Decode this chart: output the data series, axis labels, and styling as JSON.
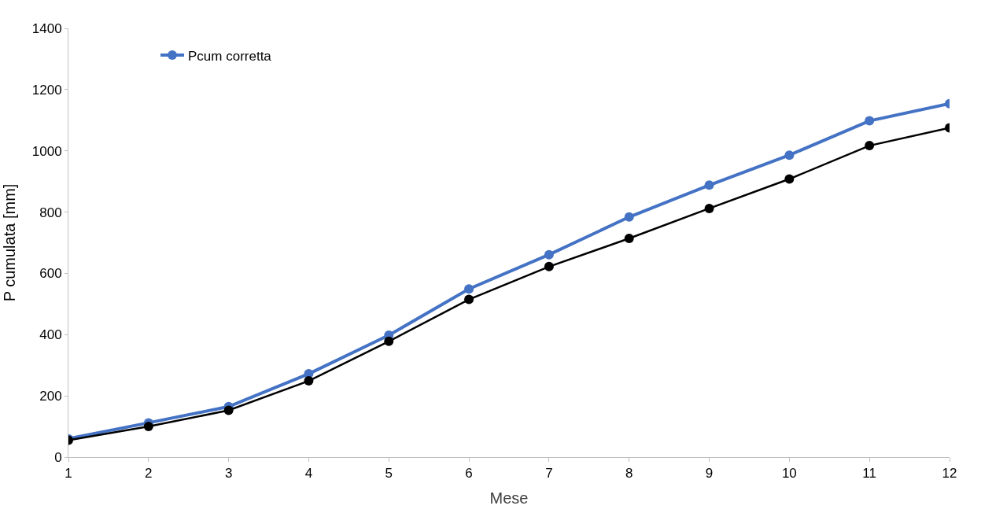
{
  "chart_data": {
    "type": "line",
    "xlabel": "Mese",
    "ylabel": "P cumulata [mm]",
    "x": [
      1,
      2,
      3,
      4,
      5,
      6,
      7,
      8,
      9,
      10,
      11,
      12
    ],
    "series": [
      {
        "name": "Pcum corretta",
        "color": "#4472c4",
        "values": [
          60,
          112,
          165,
          272,
          398,
          549,
          661,
          784,
          888,
          986,
          1098,
          1154
        ]
      },
      {
        "color": "#000000",
        "values": [
          55,
          100,
          153,
          249,
          378,
          515,
          622,
          714,
          812,
          908,
          1017,
          1075
        ]
      }
    ],
    "xlim": [
      1,
      12
    ],
    "xticks": [
      1,
      2,
      3,
      4,
      5,
      6,
      7,
      8,
      9,
      10,
      11,
      12
    ],
    "ylim": [
      0,
      1400
    ],
    "yticks": [
      0,
      200,
      400,
      600,
      800,
      1000,
      1200,
      1400
    ],
    "legend": "top left",
    "marker": "circle",
    "line_style": "solid"
  }
}
